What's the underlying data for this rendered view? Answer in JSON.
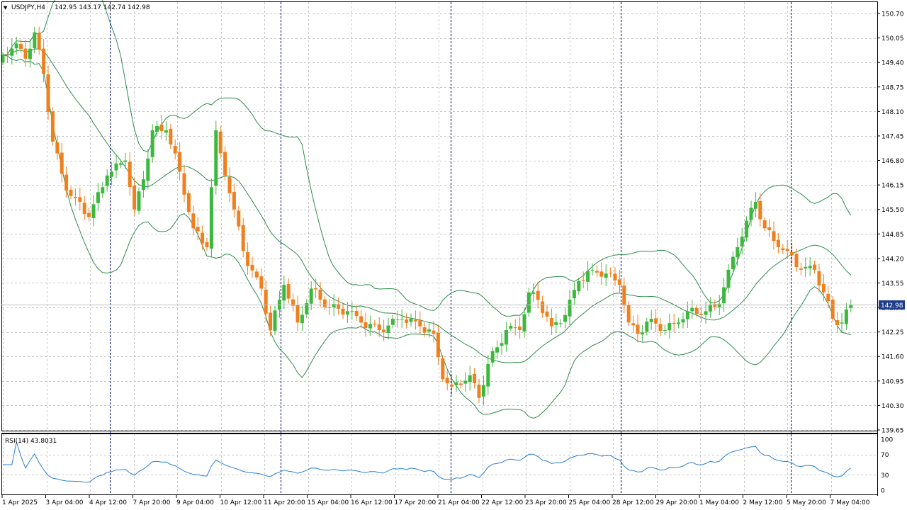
{
  "chart_header": {
    "symbol_label": "USDJPY,H4",
    "ohlc_text": "142.95 143.17 142.74 142.98",
    "dropdown_glyph": "▼"
  },
  "rsi_header": {
    "label": "RSI(14) 43.8031"
  },
  "current_price_label": "142.98",
  "colors": {
    "background": "#ffffff",
    "grid": "#c8c8c8",
    "bull": "#3cb83c",
    "bear": "#f07f1e",
    "bollinger": "#2e8b4e",
    "rsi_line": "#2a7fd4",
    "separator": "#000080",
    "price_label_bg": "#1e3c8c",
    "price_label_text": "#ffffff"
  },
  "chart_data": [
    {
      "type": "candlestick",
      "title": "USDJPY,H4",
      "ylim": [
        139.65,
        150.7
      ],
      "y_ticks": [
        "150.70",
        "150.05",
        "149.40",
        "148.75",
        "148.10",
        "147.45",
        "146.80",
        "146.15",
        "145.50",
        "144.85",
        "144.20",
        "143.55",
        "142.90",
        "142.25",
        "141.60",
        "140.95",
        "140.30",
        "139.65"
      ],
      "x_ticks": [
        "1 Apr 2025",
        "3 Apr 04:00",
        "4 Apr 12:00",
        "7 Apr 20:00",
        "9 Apr 04:00",
        "10 Apr 12:00",
        "11 Apr 20:00",
        "15 Apr 04:00",
        "16 Apr 12:00",
        "17 Apr 20:00",
        "21 Apr 04:00",
        "22 Apr 12:00",
        "23 Apr 20:00",
        "25 Apr 04:00",
        "28 Apr 12:00",
        "29 Apr 20:00",
        "1 May 04:00",
        "2 May 12:00",
        "5 May 20:00",
        "7 May 04:00"
      ],
      "last_close": 142.98,
      "indicators": [
        "Bollinger Bands"
      ],
      "grid": true,
      "price_anchors": [
        {
          "i": 0,
          "p": 149.6
        },
        {
          "i": 3,
          "p": 149.9
        },
        {
          "i": 5,
          "p": 149.5
        },
        {
          "i": 7,
          "p": 150.2
        },
        {
          "i": 9,
          "p": 149.1
        },
        {
          "i": 11,
          "p": 147.3
        },
        {
          "i": 14,
          "p": 146.0
        },
        {
          "i": 16,
          "p": 145.8
        },
        {
          "i": 19,
          "p": 145.3
        },
        {
          "i": 23,
          "p": 146.4
        },
        {
          "i": 27,
          "p": 146.8
        },
        {
          "i": 29,
          "p": 145.5
        },
        {
          "i": 31,
          "p": 146.3
        },
        {
          "i": 33,
          "p": 147.6
        },
        {
          "i": 36,
          "p": 147.6
        },
        {
          "i": 39,
          "p": 146.5
        },
        {
          "i": 42,
          "p": 145.0
        },
        {
          "i": 45,
          "p": 144.5
        },
        {
          "i": 47,
          "p": 147.6
        },
        {
          "i": 49,
          "p": 146.4
        },
        {
          "i": 51,
          "p": 145.5
        },
        {
          "i": 54,
          "p": 144.0
        },
        {
          "i": 57,
          "p": 143.4
        },
        {
          "i": 59,
          "p": 142.3
        },
        {
          "i": 62,
          "p": 143.5
        },
        {
          "i": 65,
          "p": 142.5
        },
        {
          "i": 68,
          "p": 143.4
        },
        {
          "i": 72,
          "p": 142.9
        },
        {
          "i": 76,
          "p": 142.8
        },
        {
          "i": 79,
          "p": 142.5
        },
        {
          "i": 83,
          "p": 142.3
        },
        {
          "i": 88,
          "p": 142.6
        },
        {
          "i": 92,
          "p": 142.4
        },
        {
          "i": 95,
          "p": 142.2
        },
        {
          "i": 97,
          "p": 141.0
        },
        {
          "i": 99,
          "p": 140.8
        },
        {
          "i": 103,
          "p": 141.1
        },
        {
          "i": 105,
          "p": 140.5
        },
        {
          "i": 107,
          "p": 141.4
        },
        {
          "i": 111,
          "p": 142.3
        },
        {
          "i": 114,
          "p": 142.3
        },
        {
          "i": 116,
          "p": 143.3
        },
        {
          "i": 118,
          "p": 143.1
        },
        {
          "i": 121,
          "p": 142.4
        },
        {
          "i": 124,
          "p": 142.7
        },
        {
          "i": 127,
          "p": 143.6
        },
        {
          "i": 130,
          "p": 143.9
        },
        {
          "i": 133,
          "p": 143.8
        },
        {
          "i": 136,
          "p": 143.5
        },
        {
          "i": 138,
          "p": 142.5
        },
        {
          "i": 140,
          "p": 142.2
        },
        {
          "i": 143,
          "p": 142.6
        },
        {
          "i": 146,
          "p": 142.3
        },
        {
          "i": 149,
          "p": 142.5
        },
        {
          "i": 151,
          "p": 142.8
        },
        {
          "i": 155,
          "p": 142.8
        },
        {
          "i": 158,
          "p": 143.0
        },
        {
          "i": 160,
          "p": 143.9
        },
        {
          "i": 162,
          "p": 144.5
        },
        {
          "i": 164,
          "p": 145.2
        },
        {
          "i": 166,
          "p": 145.7
        },
        {
          "i": 168,
          "p": 145.0
        },
        {
          "i": 171,
          "p": 144.5
        },
        {
          "i": 173,
          "p": 144.4
        },
        {
          "i": 176,
          "p": 143.9
        },
        {
          "i": 179,
          "p": 143.9
        },
        {
          "i": 181,
          "p": 143.3
        },
        {
          "i": 183,
          "p": 142.6
        },
        {
          "i": 185,
          "p": 142.5
        },
        {
          "i": 187,
          "p": 142.98
        }
      ]
    },
    {
      "type": "line",
      "title": "RSI(14) 43.8031",
      "ylim": [
        0,
        100
      ],
      "y_ticks": [
        "100",
        "70",
        "30",
        "0"
      ],
      "levels": [
        70,
        30
      ],
      "last_value": 43.8031,
      "grid": true
    }
  ]
}
